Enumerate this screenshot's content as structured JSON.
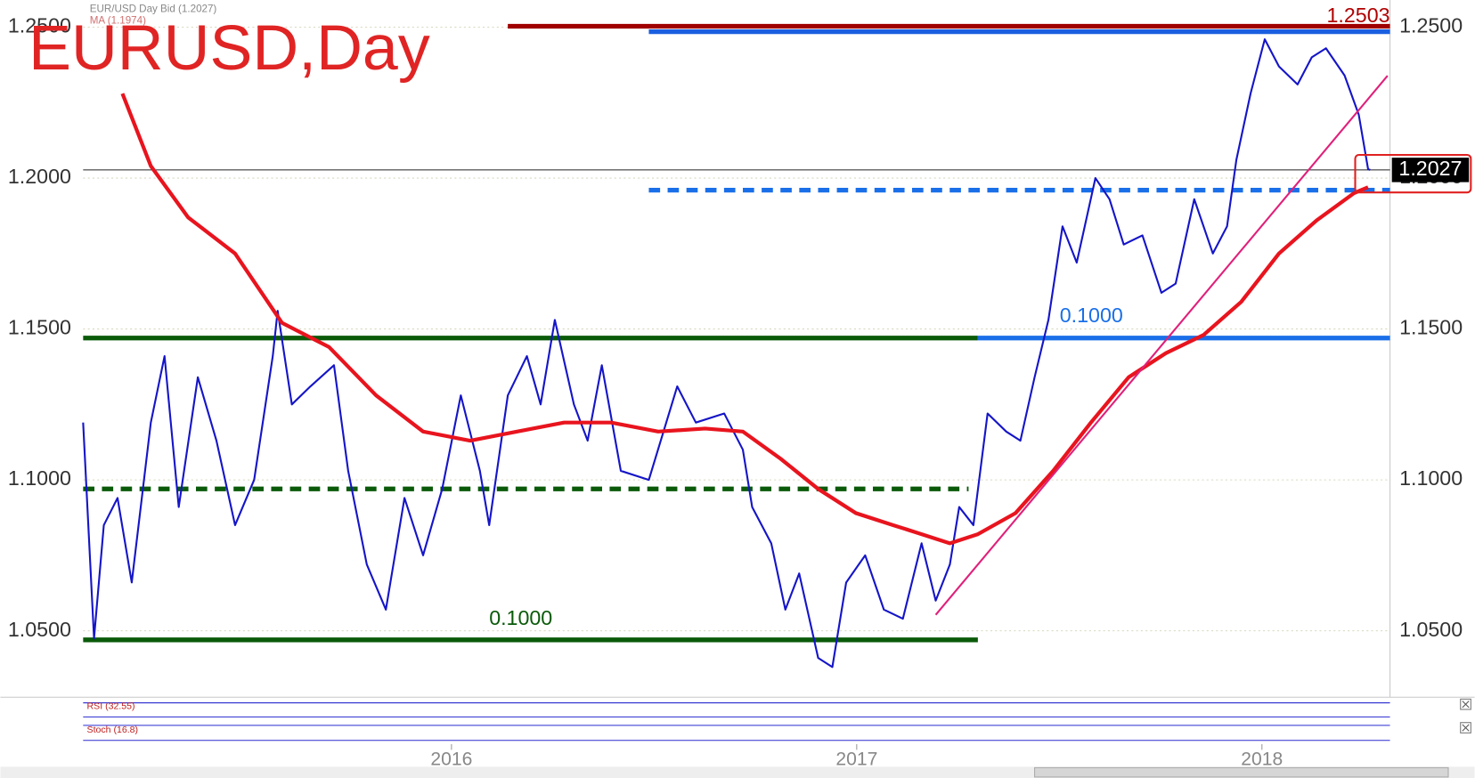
{
  "chart_data": {
    "type": "line",
    "title": "EURUSD,Day",
    "xlim": [
      2015.091,
      2018.316
    ],
    "xticks": [
      2016,
      2017,
      2018
    ],
    "ylim": [
      1.028,
      1.259
    ],
    "yticks": [
      {
        "value": 1.05,
        "label": "1.0500"
      },
      {
        "value": 1.1,
        "label": "1.1000"
      },
      {
        "value": 1.15,
        "label": "1.1500"
      },
      {
        "value": 1.2,
        "label": "1.2000"
      },
      {
        "value": 1.25,
        "label": "1.2500"
      }
    ],
    "grid": true,
    "series": [
      {
        "name": "EUR/USD Day Bid (1.2027)",
        "color": "#1515c8",
        "x": [
          2015.091,
          2015.118,
          2015.142,
          2015.176,
          2015.211,
          2015.258,
          2015.292,
          2015.327,
          2015.374,
          2015.42,
          2015.466,
          2015.513,
          2015.559,
          2015.571,
          2015.606,
          2015.652,
          2015.71,
          2015.745,
          2015.791,
          2015.838,
          2015.884,
          2015.93,
          2015.977,
          2016.023,
          2016.07,
          2016.093,
          2016.139,
          2016.186,
          2016.22,
          2016.255,
          2016.302,
          2016.336,
          2016.371,
          2016.418,
          2016.487,
          2016.557,
          2016.603,
          2016.673,
          2016.719,
          2016.742,
          2016.789,
          2016.824,
          2016.858,
          2016.905,
          2016.94,
          2016.974,
          2017.021,
          2017.067,
          2017.114,
          2017.16,
          2017.195,
          2017.23,
          2017.253,
          2017.288,
          2017.323,
          2017.369,
          2017.404,
          2017.439,
          2017.473,
          2017.508,
          2017.543,
          2017.589,
          2017.624,
          2017.659,
          2017.705,
          2017.752,
          2017.787,
          2017.833,
          2017.879,
          2017.914,
          2017.937,
          2017.972,
          2018.007,
          2018.042,
          2018.088,
          2018.123,
          2018.158,
          2018.204,
          2018.239,
          2018.262,
          2018.267
        ],
        "values": [
          1.119,
          1.0475,
          1.085,
          1.094,
          1.066,
          1.119,
          1.141,
          1.091,
          1.134,
          1.113,
          1.085,
          1.1,
          1.141,
          1.156,
          1.125,
          1.131,
          1.138,
          1.103,
          1.072,
          1.057,
          1.094,
          1.075,
          1.097,
          1.128,
          1.103,
          1.085,
          1.128,
          1.141,
          1.125,
          1.153,
          1.125,
          1.113,
          1.138,
          1.103,
          1.1,
          1.131,
          1.119,
          1.122,
          1.11,
          1.091,
          1.079,
          1.057,
          1.069,
          1.041,
          1.038,
          1.066,
          1.075,
          1.057,
          1.054,
          1.079,
          1.06,
          1.072,
          1.091,
          1.085,
          1.122,
          1.116,
          1.113,
          1.134,
          1.153,
          1.184,
          1.172,
          1.2,
          1.193,
          1.178,
          1.181,
          1.162,
          1.165,
          1.193,
          1.175,
          1.184,
          1.206,
          1.228,
          1.246,
          1.237,
          1.231,
          1.24,
          1.243,
          1.234,
          1.221,
          1.203,
          1.2027
        ]
      },
      {
        "name": "MA (1.1974)",
        "color": "#e8141e",
        "x": [
          2015.188,
          2015.258,
          2015.35,
          2015.466,
          2015.582,
          2015.698,
          2015.814,
          2015.93,
          2016.046,
          2016.162,
          2016.278,
          2016.394,
          2016.51,
          2016.626,
          2016.719,
          2016.812,
          2016.905,
          2016.998,
          2017.09,
          2017.16,
          2017.23,
          2017.299,
          2017.392,
          2017.485,
          2017.578,
          2017.671,
          2017.763,
          2017.856,
          2017.949,
          2018.042,
          2018.135,
          2018.227,
          2018.262
        ],
        "values": [
          1.228,
          1.204,
          1.187,
          1.175,
          1.152,
          1.144,
          1.128,
          1.116,
          1.113,
          1.116,
          1.119,
          1.119,
          1.116,
          1.117,
          1.116,
          1.107,
          1.097,
          1.089,
          1.085,
          1.082,
          1.079,
          1.082,
          1.089,
          1.103,
          1.119,
          1.134,
          1.142,
          1.148,
          1.159,
          1.175,
          1.186,
          1.195,
          1.197
        ]
      }
    ],
    "levels": [
      {
        "value": 1.2503,
        "color": "#a00000",
        "x": [
          2016.139,
          2018.316
        ],
        "style": "solid"
      },
      {
        "value": 1.2485,
        "color": "#1a5fe0",
        "x": [
          2016.487,
          2018.316
        ],
        "style": "solid"
      },
      {
        "value": 1.196,
        "color": "#1a6fe8",
        "x": [
          2016.487,
          2018.316
        ],
        "style": "dashed"
      },
      {
        "value": 1.147,
        "color": "#0a5a0a",
        "x": [
          2015.091,
          2017.299
        ],
        "style": "solid"
      },
      {
        "value": 1.147,
        "color": "#1a6fe8",
        "x": [
          2017.299,
          2018.316
        ],
        "style": "solid"
      },
      {
        "value": 1.097,
        "color": "#0a5a0a",
        "x": [
          2015.091,
          2017.276
        ],
        "style": "dashed"
      },
      {
        "value": 1.047,
        "color": "#0a5a0a",
        "x": [
          2015.091,
          2017.299
        ],
        "style": "solid"
      }
    ],
    "level_labels": [
      {
        "text": "0.1000",
        "x": 2016.093,
        "y": 1.05,
        "color": "#0a5a0a"
      },
      {
        "text": "0.1000",
        "x": 2017.501,
        "y": 1.1503,
        "color": "#1a6fe8"
      }
    ],
    "trendline": {
      "x": [
        2017.195,
        2018.31
      ],
      "y": [
        1.0553,
        1.2339
      ],
      "color": "#e0207a"
    },
    "high_label": {
      "value": 1.2503,
      "label": "1.2503"
    },
    "last_price": {
      "value": 1.2027,
      "label": "1.2027"
    },
    "indicators": [
      "RSI (32.55)",
      "Stoch (16.8)"
    ]
  }
}
